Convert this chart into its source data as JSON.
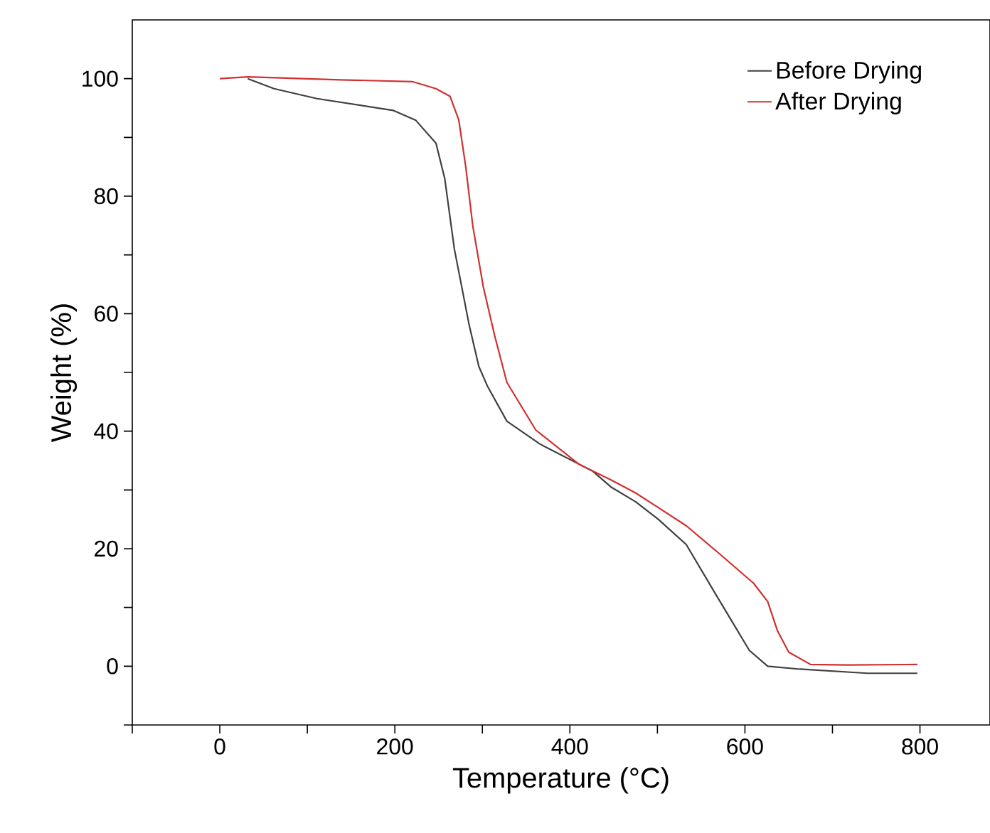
{
  "chart_data": {
    "type": "line",
    "xlabel": "Temperature (°C)",
    "ylabel": "Weight (%)",
    "xlim": [
      -100,
      880
    ],
    "ylim": [
      -10,
      110
    ],
    "xticks": [
      {
        "value": -100,
        "label": null
      },
      0,
      {
        "value": 100,
        "label": null
      },
      200,
      {
        "value": 300,
        "label": null
      },
      400,
      {
        "value": 500,
        "label": null
      },
      600,
      {
        "value": 700,
        "label": null
      },
      800
    ],
    "yticks": [
      {
        "value": -10,
        "label": null
      },
      0,
      {
        "value": 10,
        "label": null
      },
      20,
      {
        "value": 30,
        "label": null
      },
      40,
      {
        "value": 50,
        "label": null
      },
      60,
      {
        "value": 70,
        "label": null
      },
      80,
      {
        "value": 90,
        "label": null
      },
      100
    ],
    "grid": false,
    "legend": "top right",
    "line_style": "solid",
    "series": [
      {
        "name": "Before Drying",
        "color": "#404040",
        "x": [
          32,
          62,
          111,
          198,
          224,
          247,
          257,
          268,
          285,
          296,
          306,
          328,
          366,
          426,
          447,
          475,
          501,
          533,
          566,
          605,
          626,
          663,
          740,
          797
        ],
        "values": [
          100,
          98.3,
          96.6,
          94.6,
          92.9,
          89,
          83,
          71,
          58,
          51,
          47.6,
          41.7,
          37.8,
          33.2,
          30.5,
          28,
          25,
          20.7,
          12.4,
          2.7,
          0,
          -0.5,
          -1.2,
          -1.2
        ]
      },
      {
        "name": "After Drying",
        "color": "#d03030",
        "x": [
          0,
          32,
          138,
          220,
          247,
          263,
          273,
          281,
          289,
          301,
          314,
          328,
          361,
          410,
          447,
          475,
          501,
          533,
          572,
          610,
          626,
          637,
          650,
          675,
          718,
          797
        ],
        "values": [
          100,
          100.3,
          99.8,
          99.5,
          98.3,
          97,
          93,
          85,
          75,
          64.6,
          56.3,
          48.3,
          40.2,
          34.4,
          31.7,
          29.5,
          27,
          23.9,
          19,
          14.1,
          11,
          6.1,
          2.4,
          0.3,
          0.2,
          0.3
        ]
      }
    ]
  }
}
